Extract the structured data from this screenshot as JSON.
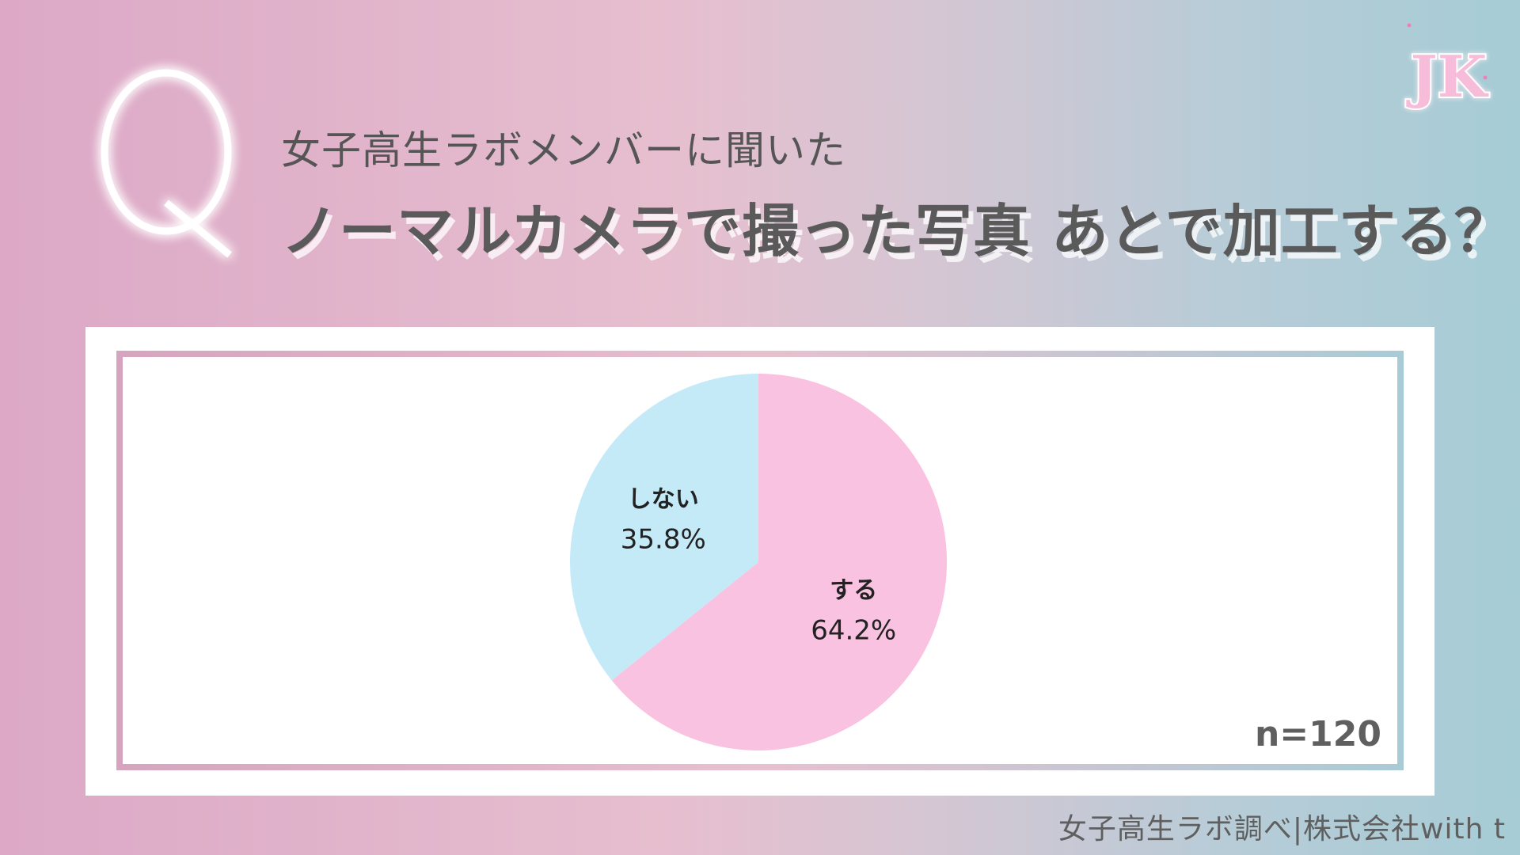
{
  "header": {
    "q_mark": "Q",
    "subtitle": "女子高生ラボメンバーに聞いた",
    "title": "ノーマルカメラで撮った写真 あとで加工する？"
  },
  "logo": {
    "letters": "JK",
    "icon": "jk-logo-icon",
    "color": "#f4b9d7"
  },
  "chart_data": {
    "type": "pie",
    "slices": [
      {
        "label": "する",
        "value": 64.2,
        "display": "64.2%",
        "color": "#f9c2e0"
      },
      {
        "label": "しない",
        "value": 35.8,
        "display": "35.8%",
        "color": "#c4eaf8"
      }
    ],
    "start_angle_deg": 0,
    "direction": "clockwise",
    "sample_note": "n=120"
  },
  "footer": {
    "source": "女子高生ラボ調べ|株式会社with t"
  }
}
